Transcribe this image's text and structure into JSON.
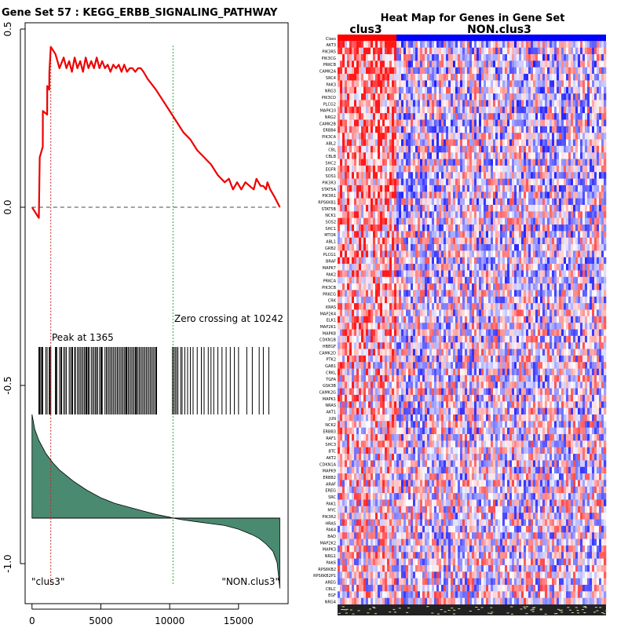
{
  "chart_data": [
    {
      "type": "line",
      "title": "Gene Set  57 : KEGG_ERBB_SIGNALING_PATHWAY",
      "xlabel": "",
      "ylabel": "",
      "xlim": [
        -500,
        18600
      ],
      "ylim": [
        -1.12,
        0.52
      ],
      "x_ticks": [
        0,
        5000,
        10000,
        15000
      ],
      "x_tick_labels": [
        "0",
        "5000",
        "10000",
        "15000"
      ],
      "y_ticks": [
        0.5,
        0.0,
        -0.5,
        -1.0
      ],
      "y_tick_labels": [
        "0.5",
        "0.0",
        "-0.5",
        "-1.0"
      ],
      "series": [
        {
          "name": "Enrichment score",
          "color": "#ee0000",
          "x": [
            0,
            500,
            560,
            780,
            790,
            1100,
            1110,
            1250,
            1260,
            1365,
            1700,
            2000,
            2300,
            2500,
            2700,
            2900,
            3100,
            3300,
            3500,
            3700,
            3900,
            4100,
            4300,
            4500,
            4700,
            4900,
            5100,
            5300,
            5500,
            5700,
            5900,
            6100,
            6300,
            6500,
            6700,
            6900,
            7100,
            7300,
            7500,
            7700,
            7900,
            8100,
            8400,
            9000,
            9500,
            10000,
            10500,
            11000,
            11500,
            12000,
            12500,
            13000,
            13500,
            14000,
            14300,
            14600,
            14900,
            15200,
            15500,
            15800,
            16100,
            16300,
            16600,
            16800,
            17000,
            17100,
            17300,
            17600,
            18000
          ],
          "y": [
            0.0,
            -0.03,
            0.14,
            0.17,
            0.27,
            0.26,
            0.34,
            0.33,
            0.38,
            0.45,
            0.43,
            0.39,
            0.42,
            0.39,
            0.41,
            0.38,
            0.42,
            0.39,
            0.41,
            0.38,
            0.42,
            0.39,
            0.41,
            0.39,
            0.42,
            0.39,
            0.41,
            0.39,
            0.4,
            0.38,
            0.4,
            0.39,
            0.4,
            0.38,
            0.4,
            0.38,
            0.39,
            0.39,
            0.38,
            0.39,
            0.39,
            0.38,
            0.36,
            0.33,
            0.3,
            0.27,
            0.24,
            0.21,
            0.19,
            0.16,
            0.14,
            0.12,
            0.09,
            0.07,
            0.08,
            0.05,
            0.07,
            0.05,
            0.07,
            0.06,
            0.05,
            0.08,
            0.06,
            0.06,
            0.05,
            0.07,
            0.05,
            0.03,
            0.0
          ]
        }
      ],
      "hit_positions": [
        500,
        560,
        640,
        720,
        780,
        1000,
        1100,
        1250,
        1300,
        1365,
        1700,
        1760,
        1800,
        2000,
        2100,
        2150,
        2300,
        2400,
        2500,
        2700,
        2800,
        2900,
        2950,
        3100,
        3150,
        3300,
        3400,
        3500,
        3600,
        3700,
        3800,
        3900,
        3950,
        4000,
        4100,
        4150,
        4300,
        4400,
        4500,
        4600,
        4700,
        4750,
        4900,
        5000,
        5050,
        5100,
        5300,
        5400,
        5500,
        5600,
        5700,
        5800,
        5900,
        6000,
        6100,
        6200,
        6300,
        6400,
        6500,
        6600,
        6700,
        6800,
        6850,
        6900,
        7000,
        7100,
        7200,
        7300,
        7400,
        7500,
        7550,
        7600,
        7700,
        7800,
        7900,
        8000,
        8100,
        8200,
        8300,
        8400,
        8500,
        8600,
        8700,
        8800,
        8900,
        9000,
        9050,
        10200,
        10300,
        10400,
        10500,
        10600,
        10800,
        10900,
        11100,
        11300,
        11500,
        11700,
        12000,
        12300,
        12500,
        12800,
        13000,
        13200,
        13500,
        13800,
        14100,
        14400,
        14700,
        15000,
        15600,
        16000,
        16500,
        16800,
        17200
      ],
      "ranked_metric": {
        "x": [
          0,
          200,
          500,
          1000,
          1500,
          2000,
          2500,
          3000,
          4000,
          5000,
          6000,
          7000,
          8000,
          9000,
          10000,
          10242,
          11000,
          12000,
          13000,
          14000,
          15000,
          16000,
          16500,
          17000,
          17500,
          17800,
          18000
        ],
        "y": [
          0.56,
          0.48,
          0.42,
          0.35,
          0.3,
          0.26,
          0.23,
          0.2,
          0.15,
          0.11,
          0.08,
          0.06,
          0.04,
          0.02,
          0.005,
          0.0,
          -0.01,
          -0.02,
          -0.03,
          -0.04,
          -0.06,
          -0.09,
          -0.11,
          -0.14,
          -0.18,
          -0.24,
          -0.38
        ]
      },
      "peak_x": 1365,
      "zero_crossing_x": 10242,
      "annotations": {
        "peak": "Peak at 1365",
        "zero_crossing": "Zero crossing at 10242",
        "left_class": "\"clus3\"",
        "right_class": "\"NON.clus3\""
      },
      "colors": {
        "es_line": "#ee0000",
        "peak_line": "#cc2222",
        "zero_line": "#33aa33",
        "metric_fill": "#4a8a70"
      }
    },
    {
      "type": "heatmap",
      "title": "Heat Map for Genes in Gene Set",
      "column_groups": [
        {
          "name": "clus3",
          "fraction": 0.22,
          "color": "#ff0000"
        },
        {
          "name": "NON.clus3",
          "fraction": 0.78,
          "color": "#0000ff"
        }
      ],
      "rows": [
        "Class",
        "AKT3",
        "PIK3R5",
        "PIK3CG",
        "PRKCB",
        "CAMK2A",
        "SRC4",
        "PAK3",
        "NRG3",
        "PIK3CD",
        "PLCG2",
        "MAPK10",
        "NRG2",
        "CAMK2B",
        "ERBB4",
        "PIK3CA",
        "ABL2",
        "CBL",
        "CBLB",
        "SHC2",
        "EGFR",
        "SOS1",
        "PIK3R3",
        "STAT5A",
        "PIK3R1",
        "RPS6KB1",
        "STAT5B",
        "NCK1",
        "SOS2",
        "SHC1",
        "MTOR",
        "ABL1",
        "GRB2",
        "PLCG1",
        "BRAF",
        "MAPK7",
        "PAK2",
        "PRKCA",
        "PIK3CB",
        "PRKCG",
        "CRK",
        "KRAS",
        "MAP2K4",
        "ELK1",
        "MAP2K1",
        "MAPK8",
        "CDKN1B",
        "HBEGF",
        "CAMK2D",
        "PTK2",
        "GAB1",
        "CRKL",
        "TGFA",
        "GSK3B",
        "CAMK2G",
        "MAPK1",
        "NRAS",
        "AKT1",
        "JUN",
        "NCK2",
        "ERBB3",
        "RAF1",
        "SHC3",
        "BTC",
        "AKT2",
        "CDKN1A",
        "MAPK9",
        "ERBB2",
        "ARAF",
        "EREG",
        "SRC",
        "PAK1",
        "MYC",
        "PIK3R2",
        "HRAS",
        "PAK4",
        "BAD",
        "MAP2K2",
        "MAPK3",
        "NRG1",
        "PAK6",
        "RPS6KB2",
        "RPS6KB2P1",
        "AREG",
        "CBLC",
        "EGF",
        "NRG4"
      ],
      "color_scale": {
        "low": "#0000ff",
        "mid": "#ffffff",
        "high": "#ff0000"
      }
    }
  ]
}
